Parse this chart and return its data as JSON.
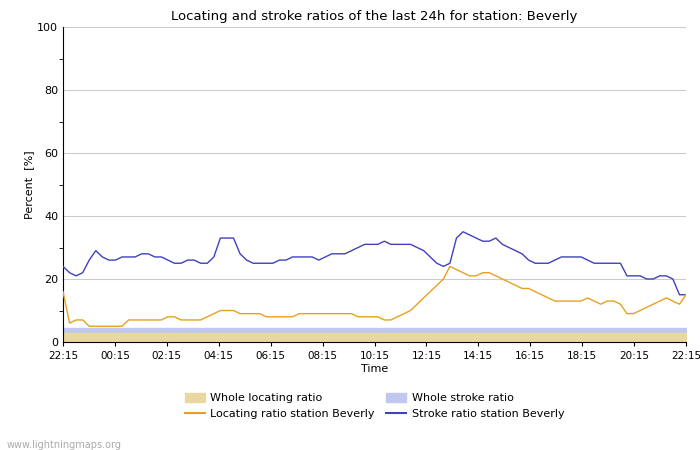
{
  "title": "Locating and stroke ratios of the last 24h for station: Beverly",
  "xlabel": "Time",
  "ylabel": "Percent  [%]",
  "ylim": [
    0,
    100
  ],
  "yticks_major": [
    0,
    20,
    40,
    60,
    80,
    100
  ],
  "xtick_labels": [
    "22:15",
    "00:15",
    "02:15",
    "04:15",
    "06:15",
    "08:15",
    "10:15",
    "12:15",
    "14:15",
    "16:15",
    "18:15",
    "20:15",
    "22:15"
  ],
  "watermark": "www.lightningmaps.org",
  "background_color": "#ffffff",
  "plot_bg_color": "#ffffff",
  "grid_color": "#cccccc",
  "whole_locating_ratio": [
    3,
    3,
    3,
    3,
    3,
    3,
    3,
    3,
    3,
    3,
    3,
    3,
    3,
    3,
    3,
    3,
    3,
    3,
    3,
    3,
    3,
    3,
    3,
    3,
    3,
    3,
    3,
    3,
    3,
    3,
    3,
    3,
    3,
    3,
    3,
    3,
    3,
    3,
    3,
    3,
    3,
    3,
    3,
    3,
    3,
    3,
    3,
    3,
    3,
    3,
    3,
    3,
    3,
    3,
    3,
    3,
    3,
    3,
    3,
    3,
    3,
    3,
    3,
    3,
    3,
    3,
    3,
    3,
    3,
    3,
    3,
    3,
    3,
    3,
    3,
    3,
    3,
    3,
    3,
    3,
    3,
    3,
    3,
    3,
    3,
    3,
    3,
    3,
    3,
    3,
    3,
    3,
    3,
    3,
    3,
    3
  ],
  "whole_stroke_ratio": [
    4.5,
    4.5,
    4.5,
    4.5,
    4.5,
    4.5,
    4.5,
    4.5,
    4.5,
    4.5,
    4.5,
    4.5,
    4.5,
    4.5,
    4.5,
    4.5,
    4.5,
    4.5,
    4.5,
    4.5,
    4.5,
    4.5,
    4.5,
    4.5,
    4.5,
    4.5,
    4.5,
    4.5,
    4.5,
    4.5,
    4.5,
    4.5,
    4.5,
    4.5,
    4.5,
    4.5,
    4.5,
    4.5,
    4.5,
    4.5,
    4.5,
    4.5,
    4.5,
    4.5,
    4.5,
    4.5,
    4.5,
    4.5,
    4.5,
    4.5,
    4.5,
    4.5,
    4.5,
    4.5,
    4.5,
    4.5,
    4.5,
    4.5,
    4.5,
    4.5,
    4.5,
    4.5,
    4.5,
    4.5,
    4.5,
    4.5,
    4.5,
    4.5,
    4.5,
    4.5,
    4.5,
    4.5,
    4.5,
    4.5,
    4.5,
    4.5,
    4.5,
    4.5,
    4.5,
    4.5,
    4.5,
    4.5,
    4.5,
    4.5,
    4.5,
    4.5,
    4.5,
    4.5,
    4.5,
    4.5,
    4.5,
    4.5,
    4.5,
    4.5,
    4.5,
    4.5
  ],
  "locating_ratio": [
    16,
    6,
    7,
    7,
    5,
    5,
    5,
    5,
    5,
    5,
    7,
    7,
    7,
    7,
    7,
    7,
    8,
    8,
    7,
    7,
    7,
    7,
    8,
    9,
    10,
    10,
    10,
    9,
    9,
    9,
    9,
    8,
    8,
    8,
    8,
    8,
    9,
    9,
    9,
    9,
    9,
    9,
    9,
    9,
    9,
    8,
    8,
    8,
    8,
    7,
    7,
    8,
    9,
    10,
    12,
    14,
    16,
    18,
    20,
    24,
    23,
    22,
    21,
    21,
    22,
    22,
    21,
    20,
    19,
    18,
    17,
    17,
    16,
    15,
    14,
    13,
    13,
    13,
    13,
    13,
    14,
    13,
    12,
    13,
    13,
    12,
    9,
    9,
    10,
    11,
    12,
    13,
    14,
    13,
    12,
    15
  ],
  "stroke_ratio": [
    24,
    22,
    21,
    22,
    26,
    29,
    27,
    26,
    26,
    27,
    27,
    27,
    28,
    28,
    27,
    27,
    26,
    25,
    25,
    26,
    26,
    25,
    25,
    27,
    33,
    33,
    33,
    28,
    26,
    25,
    25,
    25,
    25,
    26,
    26,
    27,
    27,
    27,
    27,
    26,
    27,
    28,
    28,
    28,
    29,
    30,
    31,
    31,
    31,
    32,
    31,
    31,
    31,
    31,
    30,
    29,
    27,
    25,
    24,
    25,
    33,
    35,
    34,
    33,
    32,
    32,
    33,
    31,
    30,
    29,
    28,
    26,
    25,
    25,
    25,
    26,
    27,
    27,
    27,
    27,
    26,
    25,
    25,
    25,
    25,
    25,
    21,
    21,
    21,
    20,
    20,
    21,
    21,
    20,
    15,
    15
  ],
  "whole_locating_color": "#e8d8a0",
  "whole_stroke_color": "#c0c8f0",
  "locating_color": "#e8a020",
  "stroke_color": "#4040c0",
  "legend_labels": [
    "Whole locating ratio",
    "Locating ratio station Beverly",
    "Whole stroke ratio",
    "Stroke ratio station Beverly"
  ]
}
